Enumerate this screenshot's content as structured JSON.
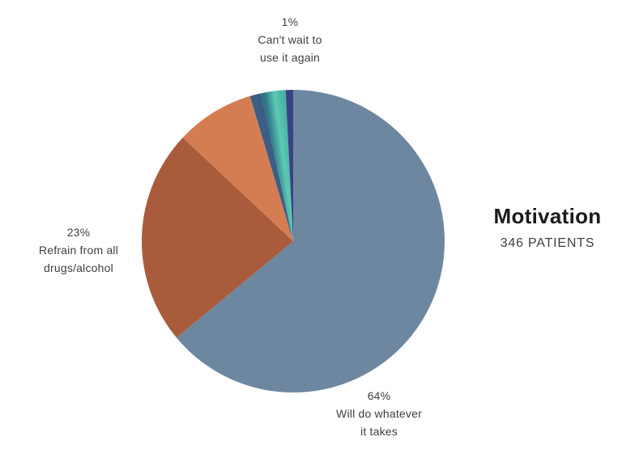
{
  "page": {
    "background": "#ffffff"
  },
  "header": {
    "title": "Motivation",
    "subtitle": "346 PATIENTS",
    "title_color": "#1b1b1b",
    "subtitle_color": "#3f3f3f"
  },
  "chart_data": {
    "type": "pie",
    "title": "Motivation",
    "subtitle": "346 PATIENTS",
    "patients_total": 346,
    "start_angle_deg": 0,
    "direction": "clockwise",
    "legend_position": "none",
    "background": "#ffffff",
    "slices": [
      {
        "label": "Will do whatever it takes",
        "percent": 64,
        "color": "#6d87a1"
      },
      {
        "label": "Refrain from all drugs/alcohol",
        "percent": 23,
        "color": "#a85c3b"
      },
      {
        "label": "",
        "percent": 8.4,
        "color": "#d57d52"
      },
      {
        "label": "",
        "percent": 1.2,
        "color": "#3b5e84"
      },
      {
        "label": "",
        "percent": 2.6,
        "color": "#49b3a3",
        "gradient": [
          "#2c7386",
          "#5dc9b4",
          "#49b3a3"
        ]
      },
      {
        "label": "Can't wait to use it again",
        "percent": 0.8,
        "color": "#3a4382"
      }
    ]
  },
  "callouts": {
    "top": {
      "percent": "1%",
      "line1": "Can't wait to",
      "line2": "use it again"
    },
    "left": {
      "percent": "23%",
      "line1": "Refrain from all",
      "line2": "drugs/alcohol"
    },
    "bottom": {
      "percent": "64%",
      "line1": "Will do whatever",
      "line2": "it takes"
    }
  },
  "text_color": "#3f3f3f"
}
